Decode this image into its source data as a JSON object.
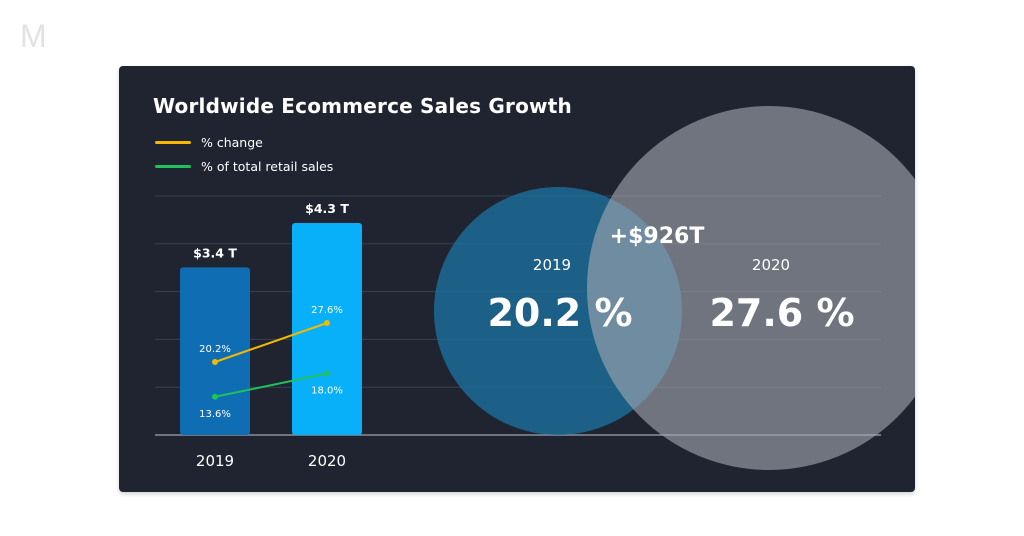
{
  "logo": {
    "text": "M"
  },
  "title": "Worldwide Ecommerce Sales Growth",
  "legend": [
    {
      "label": "% change",
      "color": "#f5b800"
    },
    {
      "label": "% of total retail sales",
      "color": "#1fc25b"
    }
  ],
  "colors": {
    "background": "#1f2430",
    "bar_2019": "#0f6db3",
    "bar_2020": "#07b0f8",
    "circle_2019": "#1b6f9e",
    "circle_2020": "#a6aab3",
    "highlight": "#f5b800"
  },
  "chart_data": [
    {
      "type": "bar",
      "title": "Worldwide Ecommerce Sales Growth",
      "categories": [
        "2019",
        "2020"
      ],
      "values": [
        3.4,
        4.3
      ],
      "value_labels": [
        "$3.4 T",
        "$4.3 T"
      ],
      "unit": "trillion USD",
      "ylim": [
        0,
        5
      ],
      "grid": true,
      "overlay_lines": [
        {
          "name": "% change",
          "values": [
            20.2,
            27.6
          ],
          "labels": [
            "20.2%",
            "27.6%"
          ],
          "color": "#f5b800"
        },
        {
          "name": "% of total retail sales",
          "values": [
            13.6,
            18.0
          ],
          "labels": [
            "13.6%",
            "18.0%"
          ],
          "color": "#1fc25b"
        }
      ],
      "legend_position": "top-left"
    },
    {
      "type": "venn",
      "sets": [
        {
          "label": "2019",
          "value": 20.2,
          "value_label": "20.2 %"
        },
        {
          "label": "2020",
          "value": 27.6,
          "value_label": "27.6 %"
        }
      ],
      "annotation": "+$926T"
    }
  ]
}
